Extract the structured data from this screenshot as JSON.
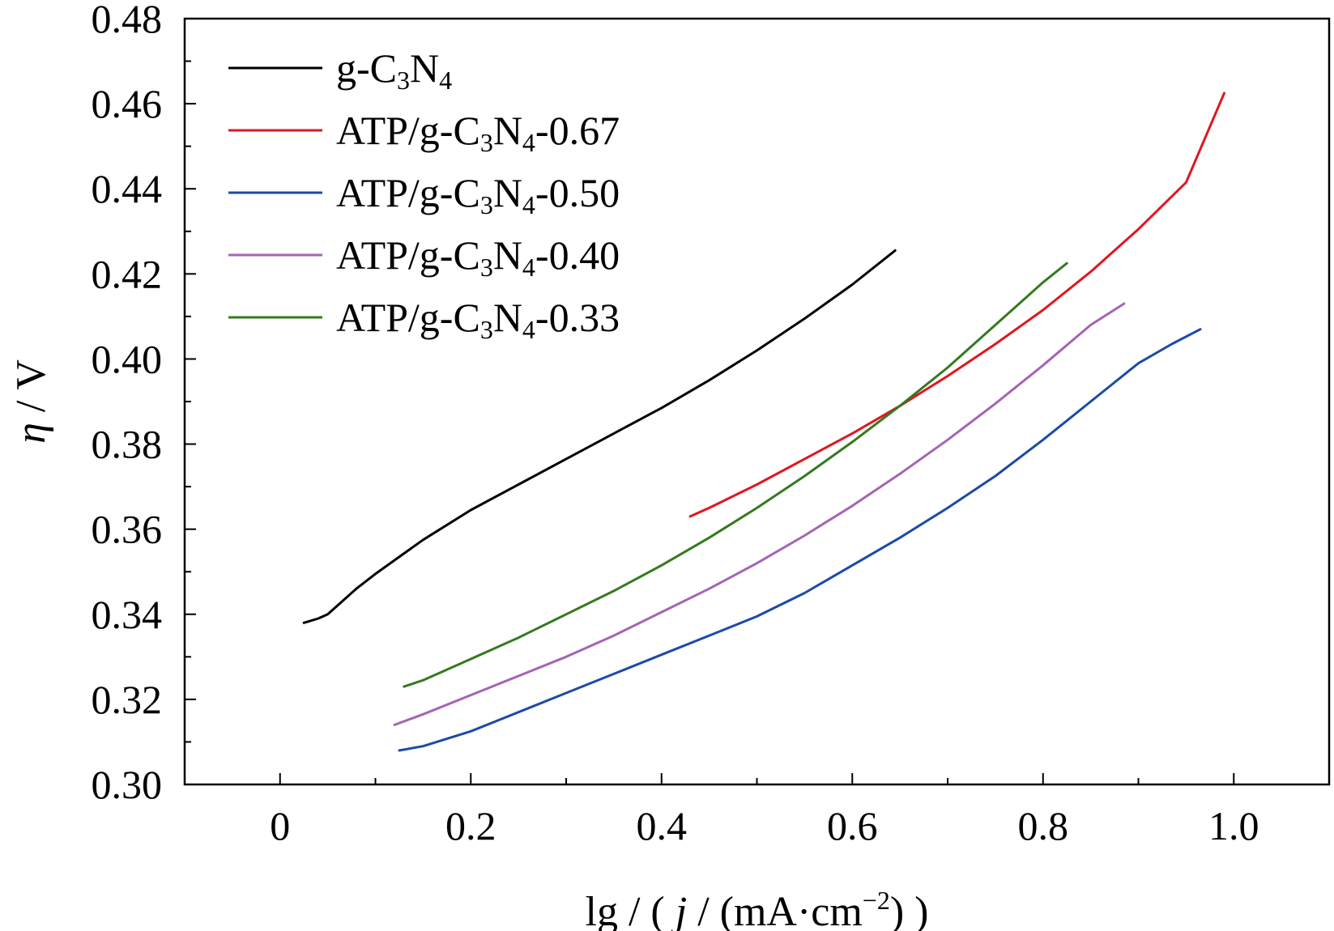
{
  "chart_data": {
    "type": "line",
    "xlabel": {
      "pre": "lg / ( ",
      "italic": "j",
      "post": " / (mA·cm",
      "sup": "−2",
      "end": ") )"
    },
    "ylabel": {
      "italic": "η",
      "post": " / V"
    },
    "xlim": [
      -0.1,
      1.1
    ],
    "ylim": [
      0.3,
      0.48
    ],
    "xticks": [
      0,
      0.2,
      0.4,
      0.6,
      0.8,
      1.0
    ],
    "xtick_labels": [
      "0",
      "0.2",
      "0.4",
      "0.6",
      "0.8",
      "1.0"
    ],
    "yticks": [
      0.3,
      0.32,
      0.34,
      0.36,
      0.38,
      0.4,
      0.42,
      0.44,
      0.46,
      0.48
    ],
    "ytick_labels": [
      "0.30",
      "0.32",
      "0.34",
      "0.36",
      "0.38",
      "0.40",
      "0.42",
      "0.44",
      "0.46",
      "0.48"
    ],
    "legend_position": "top-left",
    "grid": false,
    "series": [
      {
        "name": "g-C3N4",
        "legend": {
          "pre": "g-C",
          "sub1": "3",
          "mid": "N",
          "sub2": "4",
          "post": ""
        },
        "color": "#000000",
        "points": [
          [
            0.025,
            0.338
          ],
          [
            0.04,
            0.339
          ],
          [
            0.05,
            0.34
          ],
          [
            0.06,
            0.342
          ],
          [
            0.08,
            0.346
          ],
          [
            0.1,
            0.3495
          ],
          [
            0.15,
            0.3575
          ],
          [
            0.2,
            0.3645
          ],
          [
            0.25,
            0.3705
          ],
          [
            0.3,
            0.3765
          ],
          [
            0.35,
            0.3825
          ],
          [
            0.4,
            0.3885
          ],
          [
            0.45,
            0.395
          ],
          [
            0.5,
            0.402
          ],
          [
            0.55,
            0.4095
          ],
          [
            0.6,
            0.4175
          ],
          [
            0.645,
            0.4255
          ]
        ]
      },
      {
        "name": "ATP/g-C3N4-0.67",
        "legend": {
          "pre": "ATP/g-C",
          "sub1": "3",
          "mid": "N",
          "sub2": "4",
          "post": "-0.67"
        },
        "color": "#e0161f",
        "points": [
          [
            0.43,
            0.363
          ],
          [
            0.45,
            0.365
          ],
          [
            0.5,
            0.3705
          ],
          [
            0.55,
            0.3765
          ],
          [
            0.6,
            0.3825
          ],
          [
            0.65,
            0.389
          ],
          [
            0.7,
            0.396
          ],
          [
            0.75,
            0.4035
          ],
          [
            0.8,
            0.4115
          ],
          [
            0.85,
            0.4205
          ],
          [
            0.9,
            0.4305
          ],
          [
            0.95,
            0.4415
          ],
          [
            0.99,
            0.4625
          ]
        ]
      },
      {
        "name": "ATP/g-C3N4-0.50",
        "legend": {
          "pre": "ATP/g-C",
          "sub1": "3",
          "mid": "N",
          "sub2": "4",
          "post": "-0.50"
        },
        "color": "#1c4aa8",
        "points": [
          [
            0.125,
            0.308
          ],
          [
            0.15,
            0.309
          ],
          [
            0.2,
            0.3125
          ],
          [
            0.25,
            0.317
          ],
          [
            0.3,
            0.3215
          ],
          [
            0.35,
            0.326
          ],
          [
            0.4,
            0.3305
          ],
          [
            0.45,
            0.335
          ],
          [
            0.5,
            0.3395
          ],
          [
            0.55,
            0.345
          ],
          [
            0.6,
            0.3515
          ],
          [
            0.65,
            0.358
          ],
          [
            0.7,
            0.365
          ],
          [
            0.75,
            0.3725
          ],
          [
            0.8,
            0.381
          ],
          [
            0.85,
            0.39
          ],
          [
            0.9,
            0.399
          ],
          [
            0.935,
            0.4035
          ],
          [
            0.965,
            0.407
          ]
        ]
      },
      {
        "name": "ATP/g-C3N4-0.40",
        "legend": {
          "pre": "ATP/g-C",
          "sub1": "3",
          "mid": "N",
          "sub2": "4",
          "post": "-0.40"
        },
        "color": "#a564b4",
        "points": [
          [
            0.12,
            0.314
          ],
          [
            0.15,
            0.3165
          ],
          [
            0.2,
            0.321
          ],
          [
            0.25,
            0.3255
          ],
          [
            0.3,
            0.33
          ],
          [
            0.35,
            0.335
          ],
          [
            0.4,
            0.3405
          ],
          [
            0.45,
            0.346
          ],
          [
            0.5,
            0.352
          ],
          [
            0.55,
            0.3585
          ],
          [
            0.6,
            0.3655
          ],
          [
            0.65,
            0.373
          ],
          [
            0.7,
            0.381
          ],
          [
            0.75,
            0.3895
          ],
          [
            0.8,
            0.3985
          ],
          [
            0.85,
            0.408
          ],
          [
            0.885,
            0.413
          ]
        ]
      },
      {
        "name": "ATP/g-C3N4-0.33",
        "legend": {
          "pre": "ATP/g-C",
          "sub1": "3",
          "mid": "N",
          "sub2": "4",
          "post": "-0.33"
        },
        "color": "#347a1e",
        "points": [
          [
            0.13,
            0.323
          ],
          [
            0.15,
            0.3245
          ],
          [
            0.2,
            0.3295
          ],
          [
            0.25,
            0.3345
          ],
          [
            0.3,
            0.34
          ],
          [
            0.35,
            0.3455
          ],
          [
            0.4,
            0.3515
          ],
          [
            0.45,
            0.358
          ],
          [
            0.5,
            0.365
          ],
          [
            0.55,
            0.3725
          ],
          [
            0.6,
            0.3805
          ],
          [
            0.65,
            0.389
          ],
          [
            0.7,
            0.398
          ],
          [
            0.75,
            0.408
          ],
          [
            0.8,
            0.418
          ],
          [
            0.825,
            0.4225
          ]
        ]
      }
    ]
  }
}
